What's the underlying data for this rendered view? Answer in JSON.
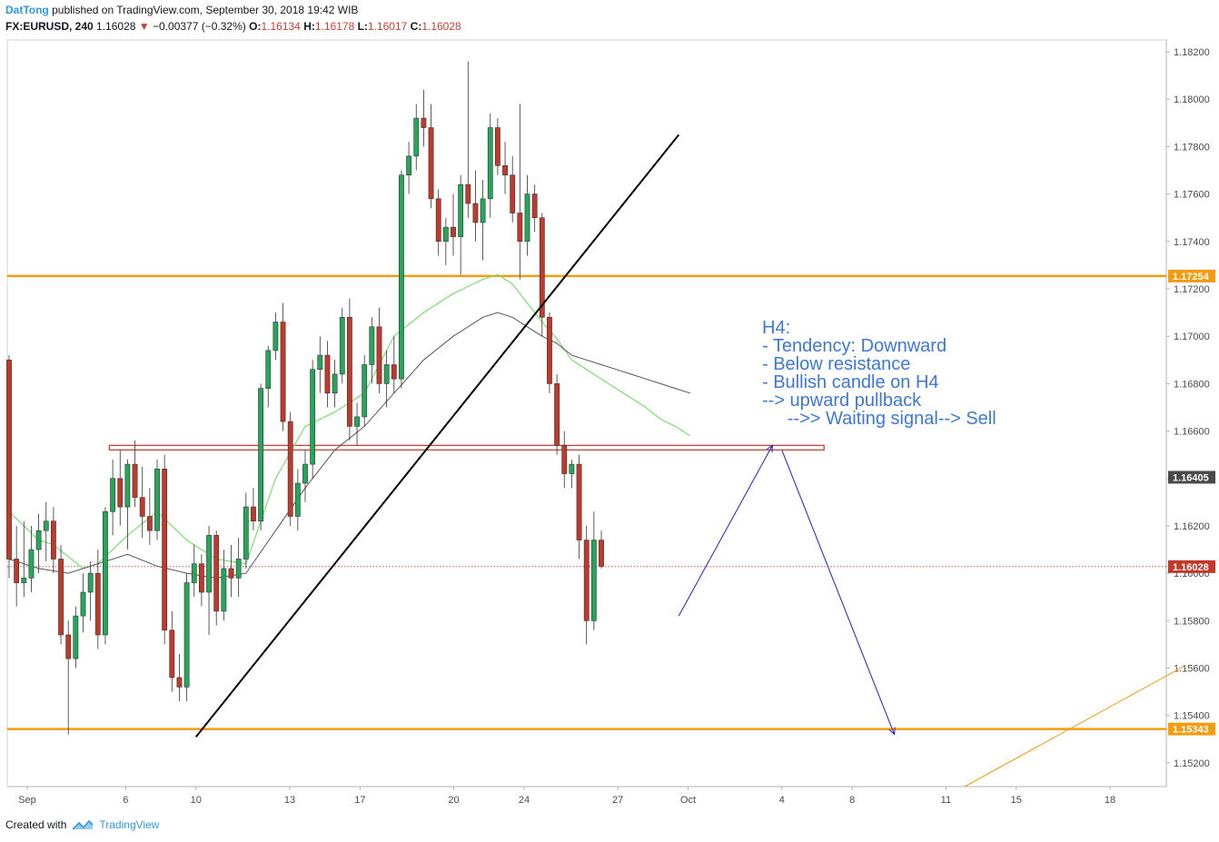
{
  "header": {
    "author": "DatTong",
    "published": " published on TradingView.com, September 30, 2018 19:42 WIB",
    "symbol": "FX:EURUSD, 240",
    "last": "1.16028",
    "change": "−0.00377 (−0.32%)",
    "open_label": "O:",
    "open": "1.16134",
    "high_label": "H:",
    "high": "1.16178",
    "low_label": "L:",
    "low": "1.16017",
    "close_label": "C:",
    "close": "1.16028"
  },
  "footer": {
    "created_with": "Created with",
    "brand": "TradingView"
  },
  "colors": {
    "up": "#26a65b",
    "down": "#c0392b",
    "ma_fast": "#7be06f",
    "ma_slow": "#555555",
    "support": "#f39c12",
    "resistance": "#c0392b",
    "arrow": "#1f1fc8",
    "trend": "#000000",
    "annotation": "#3c78d8",
    "price_line": "#c0392b"
  },
  "annotation": [
    "H4:",
    "- Tendency: Downward",
    "- Below resistance",
    "- Bullish candle on H4",
    "--> upward pullback",
    "     -->> Waiting signal--> Sell"
  ],
  "chart_data": {
    "type": "candlestick",
    "symbol": "FX:EURUSD",
    "interval": "240",
    "ylim": [
      1.151,
      1.1825
    ],
    "y_ticks": [
      "1.18200",
      "1.18000",
      "1.17800",
      "1.17600",
      "1.17400",
      "1.17200",
      "1.17000",
      "1.16800",
      "1.16600",
      "1.16400",
      "1.16200",
      "1.16000",
      "1.15800",
      "1.15600",
      "1.15400",
      "1.15200"
    ],
    "x_labels": [
      {
        "label": "Sep",
        "d": 0
      },
      {
        "label": "6",
        "d": 4.2
      },
      {
        "label": "10",
        "d": 7.2
      },
      {
        "label": "13",
        "d": 11.2
      },
      {
        "label": "17",
        "d": 14.2
      },
      {
        "label": "20",
        "d": 18.2
      },
      {
        "label": "24",
        "d": 21.2
      },
      {
        "label": "27",
        "d": 25.2
      },
      {
        "label": "Oct",
        "d": 28.2
      },
      {
        "label": "4",
        "d": 32.2
      },
      {
        "label": "8",
        "d": 35.2
      },
      {
        "label": "11",
        "d": 39.2
      },
      {
        "label": "15",
        "d": 42.2
      },
      {
        "label": "18",
        "d": 46.2
      }
    ],
    "price_tags": [
      {
        "value": 1.17254,
        "label": "1.17254",
        "color": "#f39c12"
      },
      {
        "value": 1.16405,
        "label": "1.16405",
        "color": "#4a4a4a"
      },
      {
        "value": 1.16028,
        "label": "1.16028",
        "color": "#c0392b"
      },
      {
        "value": 1.15343,
        "label": "1.15343",
        "color": "#f39c12"
      }
    ],
    "levels": [
      {
        "kind": "support",
        "value": 1.17254
      },
      {
        "kind": "support",
        "value": 1.15343
      },
      {
        "kind": "resistance",
        "value": 1.1653,
        "from_d": 3.5,
        "to_d": 34.0
      },
      {
        "kind": "last_price",
        "value": 1.16028
      }
    ],
    "trendline": [
      [
        7.2,
        1.1531
      ],
      [
        27.8,
        1.1785
      ]
    ],
    "extension_line": [
      [
        40.0,
        1.151
      ],
      [
        49.4,
        1.1561
      ]
    ],
    "projection": [
      [
        27.8,
        1.1582
      ],
      [
        31.8,
        1.1654
      ],
      [
        32.2,
        1.1652
      ],
      [
        37.0,
        1.1532
      ]
    ],
    "candles": [
      [
        1.169,
        1.1692,
        1.1598,
        1.1606
      ],
      [
        1.1606,
        1.162,
        1.1586,
        1.1596
      ],
      [
        1.1596,
        1.1622,
        1.159,
        1.1598
      ],
      [
        1.1598,
        1.162,
        1.1592,
        1.161
      ],
      [
        1.161,
        1.1625,
        1.16,
        1.1618
      ],
      [
        1.1618,
        1.163,
        1.1605,
        1.1622
      ],
      [
        1.1622,
        1.1628,
        1.16,
        1.1606
      ],
      [
        1.1606,
        1.1612,
        1.157,
        1.1574
      ],
      [
        1.1574,
        1.158,
        1.1532,
        1.1564
      ],
      [
        1.1564,
        1.1586,
        1.156,
        1.1582
      ],
      [
        1.1582,
        1.16,
        1.1575,
        1.1592
      ],
      [
        1.1592,
        1.1605,
        1.158,
        1.16
      ],
      [
        1.16,
        1.161,
        1.1568,
        1.1574
      ],
      [
        1.1574,
        1.1628,
        1.157,
        1.1626
      ],
      [
        1.1626,
        1.1648,
        1.1616,
        1.164
      ],
      [
        1.164,
        1.1652,
        1.162,
        1.1628
      ],
      [
        1.1628,
        1.1648,
        1.161,
        1.1646
      ],
      [
        1.1646,
        1.1656,
        1.1628,
        1.1632
      ],
      [
        1.1632,
        1.1645,
        1.1615,
        1.1624
      ],
      [
        1.1624,
        1.1636,
        1.1612,
        1.1618
      ],
      [
        1.1618,
        1.1648,
        1.1614,
        1.1644
      ],
      [
        1.1644,
        1.165,
        1.157,
        1.1576
      ],
      [
        1.1576,
        1.1584,
        1.155,
        1.1556
      ],
      [
        1.1556,
        1.1566,
        1.1546,
        1.1552
      ],
      [
        1.1552,
        1.16,
        1.1546,
        1.1596
      ],
      [
        1.1596,
        1.1612,
        1.159,
        1.1604
      ],
      [
        1.1604,
        1.1608,
        1.1586,
        1.1592
      ],
      [
        1.1592,
        1.162,
        1.1574,
        1.1616
      ],
      [
        1.1616,
        1.1618,
        1.1578,
        1.1584
      ],
      [
        1.1584,
        1.161,
        1.158,
        1.1602
      ],
      [
        1.1602,
        1.1612,
        1.159,
        1.1598
      ],
      [
        1.1598,
        1.1615,
        1.159,
        1.1606
      ],
      [
        1.1606,
        1.1634,
        1.1602,
        1.1628
      ],
      [
        1.1628,
        1.1636,
        1.1618,
        1.1622
      ],
      [
        1.1622,
        1.168,
        1.1618,
        1.1678
      ],
      [
        1.1678,
        1.1696,
        1.167,
        1.1694
      ],
      [
        1.1694,
        1.171,
        1.169,
        1.1706
      ],
      [
        1.1706,
        1.1714,
        1.166,
        1.1664
      ],
      [
        1.1664,
        1.1668,
        1.162,
        1.1624
      ],
      [
        1.1624,
        1.1644,
        1.1618,
        1.1638
      ],
      [
        1.1638,
        1.1652,
        1.163,
        1.1646
      ],
      [
        1.1646,
        1.169,
        1.164,
        1.1686
      ],
      [
        1.1686,
        1.17,
        1.1676,
        1.1692
      ],
      [
        1.1692,
        1.1698,
        1.167,
        1.1676
      ],
      [
        1.1676,
        1.169,
        1.167,
        1.1684
      ],
      [
        1.1684,
        1.1712,
        1.168,
        1.1708
      ],
      [
        1.1708,
        1.1716,
        1.1656,
        1.1662
      ],
      [
        1.1662,
        1.1672,
        1.1654,
        1.1666
      ],
      [
        1.1666,
        1.1692,
        1.1662,
        1.1688
      ],
      [
        1.1688,
        1.1708,
        1.168,
        1.1704
      ],
      [
        1.1704,
        1.1712,
        1.1676,
        1.168
      ],
      [
        1.168,
        1.1694,
        1.167,
        1.1688
      ],
      [
        1.1688,
        1.17,
        1.1676,
        1.1682
      ],
      [
        1.1682,
        1.177,
        1.1678,
        1.1768
      ],
      [
        1.1768,
        1.1782,
        1.176,
        1.1776
      ],
      [
        1.1776,
        1.1798,
        1.177,
        1.1792
      ],
      [
        1.1792,
        1.1804,
        1.178,
        1.1788
      ],
      [
        1.1788,
        1.1798,
        1.1754,
        1.1758
      ],
      [
        1.1758,
        1.1762,
        1.1734,
        1.174
      ],
      [
        1.174,
        1.175,
        1.173,
        1.1746
      ],
      [
        1.1746,
        1.176,
        1.1734,
        1.1742
      ],
      [
        1.1742,
        1.1768,
        1.1726,
        1.1764
      ],
      [
        1.1764,
        1.1816,
        1.175,
        1.1756
      ],
      [
        1.1756,
        1.177,
        1.174,
        1.1748
      ],
      [
        1.1748,
        1.1766,
        1.1732,
        1.1758
      ],
      [
        1.1758,
        1.1794,
        1.175,
        1.1788
      ],
      [
        1.1788,
        1.1792,
        1.1768,
        1.1772
      ],
      [
        1.1772,
        1.1782,
        1.176,
        1.1768
      ],
      [
        1.1768,
        1.1776,
        1.1748,
        1.1752
      ],
      [
        1.1752,
        1.1798,
        1.1724,
        1.174
      ],
      [
        1.174,
        1.1768,
        1.1734,
        1.176
      ],
      [
        1.176,
        1.1764,
        1.1744,
        1.175
      ],
      [
        1.175,
        1.1752,
        1.17,
        1.1708
      ],
      [
        1.1708,
        1.171,
        1.1676,
        1.168
      ],
      [
        1.168,
        1.1684,
        1.165,
        1.1654
      ],
      [
        1.1654,
        1.166,
        1.1636,
        1.1642
      ],
      [
        1.1642,
        1.1648,
        1.1636,
        1.1646
      ],
      [
        1.1646,
        1.165,
        1.1606,
        1.1614
      ],
      [
        1.1614,
        1.162,
        1.157,
        1.158
      ],
      [
        1.158,
        1.1626,
        1.1576,
        1.1614
      ],
      [
        1.1614,
        1.1618,
        1.1602,
        1.1603
      ]
    ],
    "ma_fast": [
      [
        0,
        1.1626
      ],
      [
        4,
        1.1614
      ],
      [
        6,
        1.1612
      ],
      [
        10,
        1.1602
      ],
      [
        12,
        1.1604
      ],
      [
        16,
        1.1616
      ],
      [
        20,
        1.1626
      ],
      [
        24,
        1.1614
      ],
      [
        28,
        1.1606
      ],
      [
        32,
        1.1604
      ],
      [
        36,
        1.164
      ],
      [
        40,
        1.1662
      ],
      [
        44,
        1.1668
      ],
      [
        48,
        1.1676
      ],
      [
        52,
        1.17
      ],
      [
        56,
        1.171
      ],
      [
        60,
        1.1718
      ],
      [
        64,
        1.1724
      ],
      [
        66,
        1.1726
      ],
      [
        68,
        1.1722
      ],
      [
        70,
        1.1714
      ],
      [
        72,
        1.1706
      ],
      [
        74,
        1.1699
      ],
      [
        76,
        1.169
      ],
      [
        78,
        1.1686
      ],
      [
        80,
        1.1682
      ],
      [
        82,
        1.1678
      ],
      [
        84,
        1.1674
      ],
      [
        86,
        1.167
      ],
      [
        88,
        1.1665
      ],
      [
        90,
        1.1662
      ],
      [
        92,
        1.1658
      ]
    ],
    "ma_slow": [
      [
        0,
        1.1606
      ],
      [
        4,
        1.1602
      ],
      [
        8,
        1.16
      ],
      [
        12,
        1.1604
      ],
      [
        16,
        1.1608
      ],
      [
        20,
        1.1603
      ],
      [
        24,
        1.16
      ],
      [
        28,
        1.1598
      ],
      [
        32,
        1.16
      ],
      [
        36,
        1.1618
      ],
      [
        40,
        1.1636
      ],
      [
        44,
        1.1652
      ],
      [
        48,
        1.1662
      ],
      [
        52,
        1.1676
      ],
      [
        56,
        1.169
      ],
      [
        60,
        1.17
      ],
      [
        64,
        1.1708
      ],
      [
        66,
        1.171
      ],
      [
        68,
        1.1708
      ],
      [
        70,
        1.1704
      ],
      [
        72,
        1.17
      ],
      [
        74,
        1.1697
      ],
      [
        76,
        1.1692
      ],
      [
        78,
        1.169
      ],
      [
        80,
        1.1688
      ],
      [
        82,
        1.1686
      ],
      [
        84,
        1.1684
      ],
      [
        86,
        1.1682
      ],
      [
        88,
        1.168
      ],
      [
        90,
        1.1678
      ],
      [
        92,
        1.1676
      ]
    ]
  }
}
